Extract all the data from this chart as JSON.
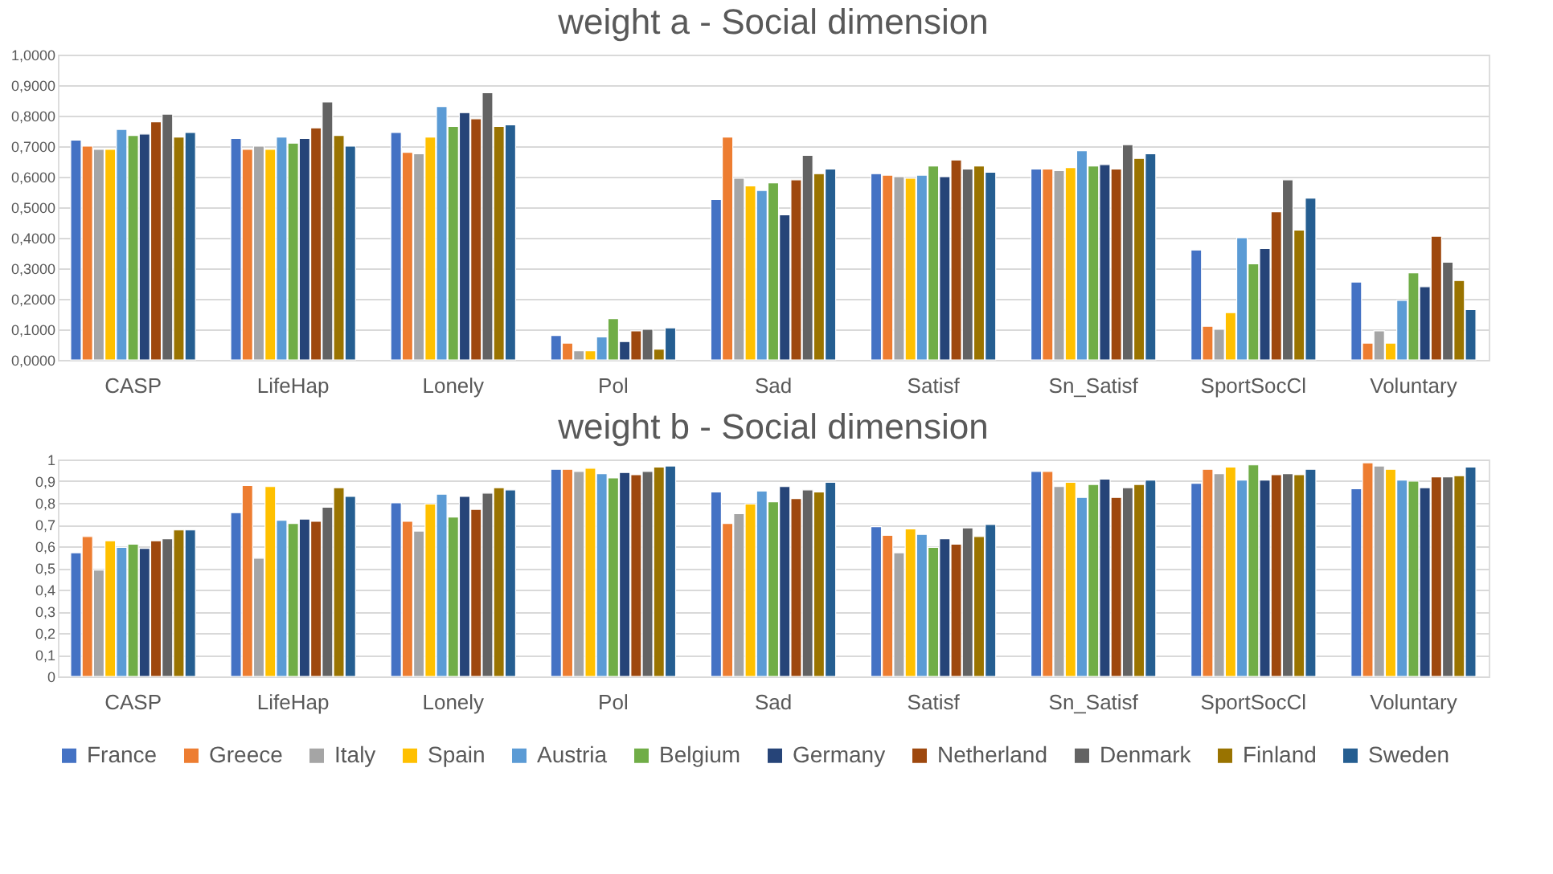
{
  "chart_data": [
    {
      "type": "bar",
      "title": "weight a - Social dimension",
      "categories": [
        "CASP",
        "LifeHap",
        "Lonely",
        "Pol",
        "Sad",
        "Satisf",
        "Sn_Satisf",
        "SportSocCl",
        "Voluntary"
      ],
      "series": [
        {
          "name": "France",
          "color": "#4472c4",
          "values": [
            0.72,
            0.725,
            0.745,
            0.08,
            0.525,
            0.61,
            0.625,
            0.36,
            0.255
          ]
        },
        {
          "name": "Greece",
          "color": "#ed7d31",
          "values": [
            0.7,
            0.69,
            0.68,
            0.055,
            0.73,
            0.605,
            0.625,
            0.11,
            0.055
          ]
        },
        {
          "name": "Italy",
          "color": "#a5a5a5",
          "values": [
            0.69,
            0.7,
            0.675,
            0.03,
            0.595,
            0.6,
            0.62,
            0.1,
            0.095
          ]
        },
        {
          "name": "Spain",
          "color": "#ffc000",
          "values": [
            0.69,
            0.69,
            0.73,
            0.03,
            0.57,
            0.595,
            0.63,
            0.155,
            0.055
          ]
        },
        {
          "name": "Austria",
          "color": "#5b9bd5",
          "values": [
            0.755,
            0.73,
            0.83,
            0.075,
            0.555,
            0.605,
            0.685,
            0.4,
            0.195
          ]
        },
        {
          "name": "Belgium",
          "color": "#70ad47",
          "values": [
            0.735,
            0.71,
            0.765,
            0.135,
            0.58,
            0.635,
            0.635,
            0.315,
            0.285
          ]
        },
        {
          "name": "Germany",
          "color": "#264478",
          "values": [
            0.74,
            0.725,
            0.81,
            0.06,
            0.475,
            0.6,
            0.64,
            0.365,
            0.24
          ]
        },
        {
          "name": "Netherland",
          "color": "#9e480e",
          "values": [
            0.78,
            0.76,
            0.79,
            0.095,
            0.59,
            0.655,
            0.625,
            0.485,
            0.405
          ]
        },
        {
          "name": "Denmark",
          "color": "#636363",
          "values": [
            0.805,
            0.845,
            0.875,
            0.1,
            0.67,
            0.625,
            0.705,
            0.59,
            0.32
          ]
        },
        {
          "name": "Finland",
          "color": "#997300",
          "values": [
            0.73,
            0.735,
            0.765,
            0.035,
            0.61,
            0.635,
            0.66,
            0.425,
            0.26
          ]
        },
        {
          "name": "Sweden",
          "color": "#255e91",
          "values": [
            0.745,
            0.7,
            0.77,
            0.105,
            0.625,
            0.615,
            0.675,
            0.53,
            0.165
          ]
        }
      ],
      "ylim": [
        0,
        1
      ],
      "yticks": [
        {
          "value": 0,
          "label": "0,0000"
        },
        {
          "value": 0.1,
          "label": "0,1000"
        },
        {
          "value": 0.2,
          "label": "0,2000"
        },
        {
          "value": 0.3,
          "label": "0,3000"
        },
        {
          "value": 0.4,
          "label": "0,4000"
        },
        {
          "value": 0.5,
          "label": "0,5000"
        },
        {
          "value": 0.6,
          "label": "0,6000"
        },
        {
          "value": 0.7,
          "label": "0,7000"
        },
        {
          "value": 0.8,
          "label": "0,8000"
        },
        {
          "value": 0.9,
          "label": "0,9000"
        },
        {
          "value": 1,
          "label": "1,0000"
        }
      ],
      "grid": "y",
      "legend": "bottom"
    },
    {
      "type": "bar",
      "title": "weight b - Social dimension",
      "categories": [
        "CASP",
        "LifeHap",
        "Lonely",
        "Pol",
        "Sad",
        "Satisf",
        "Sn_Satisf",
        "SportSocCl",
        "Voluntary"
      ],
      "series": [
        {
          "name": "France",
          "color": "#4472c4",
          "values": [
            0.57,
            0.755,
            0.8,
            0.955,
            0.85,
            0.69,
            0.945,
            0.89,
            0.865
          ]
        },
        {
          "name": "Greece",
          "color": "#ed7d31",
          "values": [
            0.645,
            0.88,
            0.715,
            0.955,
            0.705,
            0.65,
            0.945,
            0.955,
            0.985
          ]
        },
        {
          "name": "Italy",
          "color": "#a5a5a5",
          "values": [
            0.49,
            0.545,
            0.67,
            0.945,
            0.75,
            0.57,
            0.875,
            0.935,
            0.97
          ]
        },
        {
          "name": "Spain",
          "color": "#ffc000",
          "values": [
            0.625,
            0.875,
            0.795,
            0.96,
            0.795,
            0.68,
            0.895,
            0.965,
            0.955
          ]
        },
        {
          "name": "Austria",
          "color": "#5b9bd5",
          "values": [
            0.595,
            0.72,
            0.84,
            0.935,
            0.855,
            0.655,
            0.825,
            0.905,
            0.905
          ]
        },
        {
          "name": "Belgium",
          "color": "#70ad47",
          "values": [
            0.61,
            0.705,
            0.735,
            0.915,
            0.805,
            0.595,
            0.885,
            0.975,
            0.9
          ]
        },
        {
          "name": "Germany",
          "color": "#264478",
          "values": [
            0.59,
            0.725,
            0.83,
            0.94,
            0.875,
            0.635,
            0.91,
            0.905,
            0.87
          ]
        },
        {
          "name": "Netherland",
          "color": "#9e480e",
          "values": [
            0.625,
            0.715,
            0.77,
            0.93,
            0.82,
            0.61,
            0.825,
            0.93,
            0.92
          ]
        },
        {
          "name": "Denmark",
          "color": "#636363",
          "values": [
            0.635,
            0.78,
            0.845,
            0.945,
            0.86,
            0.685,
            0.87,
            0.935,
            0.92
          ]
        },
        {
          "name": "Finland",
          "color": "#997300",
          "values": [
            0.675,
            0.87,
            0.87,
            0.965,
            0.85,
            0.645,
            0.885,
            0.93,
            0.925
          ]
        },
        {
          "name": "Sweden",
          "color": "#255e91",
          "values": [
            0.675,
            0.83,
            0.86,
            0.97,
            0.895,
            0.7,
            0.905,
            0.955,
            0.965
          ]
        }
      ],
      "ylim": [
        0,
        1
      ],
      "yticks": [
        0,
        {
          "value": 0.1,
          "label": "0,1"
        },
        {
          "value": 0.2,
          "label": "0,2"
        },
        {
          "value": 0.3,
          "label": "0,3"
        },
        {
          "value": 0.4,
          "label": "0,4"
        },
        {
          "value": 0.5,
          "label": "0,5"
        },
        {
          "value": 0.6,
          "label": "0,6"
        },
        {
          "value": 0.7,
          "label": "0,7"
        },
        {
          "value": 0.8,
          "label": "0,8"
        },
        {
          "value": 0.9,
          "label": "0,9"
        },
        1
      ],
      "grid": "y",
      "legend": "bottom"
    }
  ]
}
